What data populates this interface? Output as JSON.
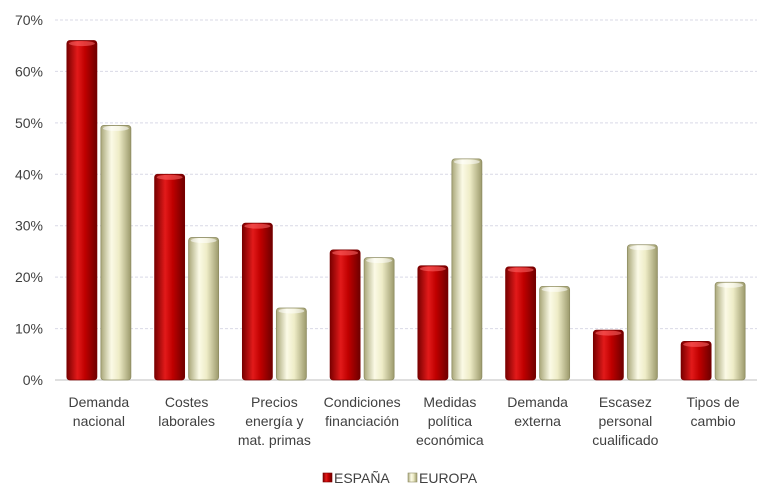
{
  "chart_data": {
    "type": "bar",
    "title": "",
    "xlabel": "",
    "ylabel": "",
    "ylim": [
      0,
      70
    ],
    "y_ticks": [
      "0%",
      "10%",
      "20%",
      "30%",
      "40%",
      "50%",
      "60%",
      "70%"
    ],
    "grid": true,
    "legend_position": "bottom",
    "categories": [
      [
        "Demanda",
        "nacional"
      ],
      [
        "Costes",
        "laborales"
      ],
      [
        "Precios",
        "energía y",
        "mat. primas"
      ],
      [
        "Condiciones",
        "financiación"
      ],
      [
        "Medidas",
        "política",
        "económica"
      ],
      [
        "Demanda",
        "externa"
      ],
      [
        "Escasez",
        "personal",
        "cualificado"
      ],
      [
        "Tipos de",
        "cambio"
      ]
    ],
    "series": [
      {
        "name": "ESPAÑA",
        "color": "#c00000",
        "values": [
          66,
          40,
          30.5,
          25.3,
          22.2,
          22,
          9.7,
          7.5
        ]
      },
      {
        "name": "EUROPA",
        "color": "#eeecc7",
        "values": [
          49.5,
          27.7,
          14,
          23.8,
          43,
          18.2,
          26.3,
          19
        ]
      }
    ]
  }
}
